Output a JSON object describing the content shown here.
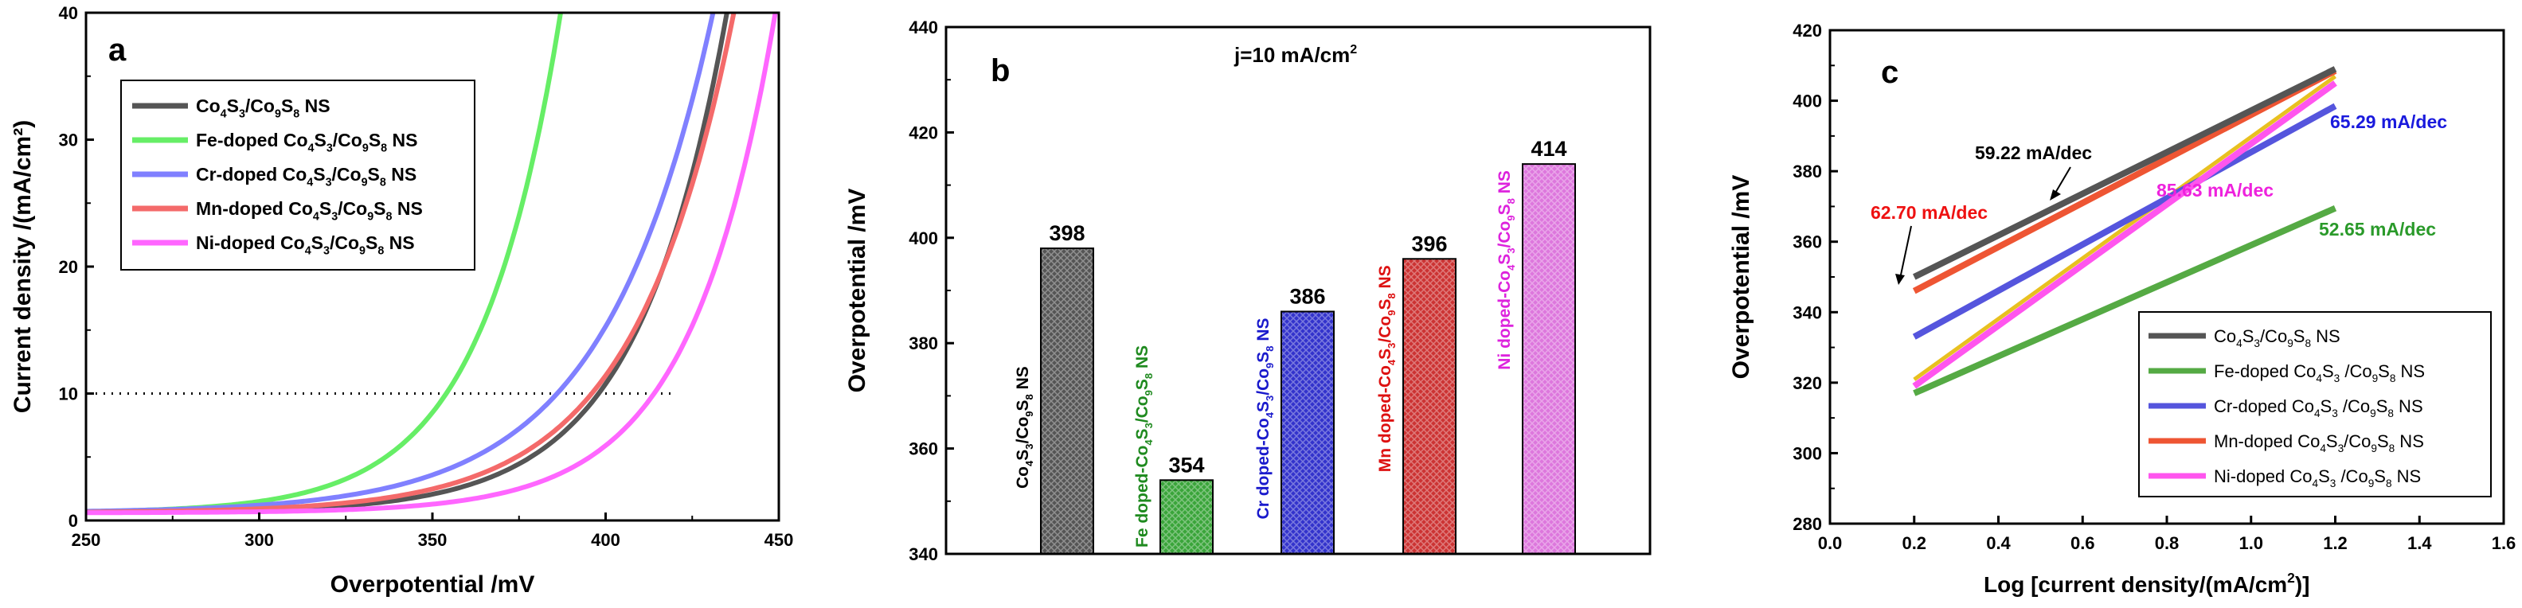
{
  "chart_data": [
    {
      "type": "line",
      "panel_label": "a",
      "xlabel": "Overpotential /mV",
      "ylabel": "Current density /(mA/cm²)",
      "xlim": [
        250,
        450
      ],
      "ylim": [
        0,
        40
      ],
      "xticks": [
        "250",
        "300",
        "350",
        "400",
        "450"
      ],
      "yticks": [
        "0",
        "10",
        "20",
        "30",
        "40"
      ],
      "reference_line": {
        "y": 10,
        "x_range": [
          250,
          420
        ],
        "style": "dotted"
      },
      "legend_position": "top-left",
      "series": [
        {
          "name": "Co4S3/Co9S8 NS",
          "legend": [
            "Co",
            "4",
            "S",
            "3",
            "/Co",
            "9",
            "S",
            "8",
            " NS"
          ],
          "color": "#555555",
          "eta10": 398,
          "end_x": 435
        },
        {
          "name": "Fe-doped Co4S3/Co9S8 NS",
          "legend": [
            "Fe-doped Co",
            "4",
            "S",
            "3",
            "/Co",
            "9",
            "S",
            "8",
            " NS"
          ],
          "color": "#66ee66",
          "eta10": 354,
          "end_x": 387
        },
        {
          "name": "Cr-doped Co4S3/Co9S8 NS",
          "legend": [
            "Cr-doped Co",
            "4",
            "S",
            "3",
            "/Co",
            "9",
            "S",
            "8",
            " NS"
          ],
          "color": "#8080ff",
          "eta10": 386,
          "end_x": 431
        },
        {
          "name": "Mn-doped Co4S3/Co9S8 NS",
          "legend": [
            "Mn-doped Co",
            "4",
            "S",
            "3",
            "/Co",
            "9",
            "S",
            "8",
            " NS"
          ],
          "color": "#f46a6a",
          "eta10": 396,
          "end_x": 437
        },
        {
          "name": "Ni-doped Co4S3/Co9S8 NS",
          "legend": [
            "Ni-doped Co",
            "4",
            "S",
            "3",
            "/Co",
            "9",
            "S",
            "8",
            " NS"
          ],
          "color": "#ff66ff",
          "eta10": 414,
          "end_x": 449
        }
      ]
    },
    {
      "type": "bar",
      "panel_label": "b",
      "title": "j=10 mA/cm²",
      "title_parts": [
        "j=10 mA/cm",
        "2"
      ],
      "xlabel": "",
      "ylabel": "Overpotential /mV",
      "ylim": [
        340,
        440
      ],
      "yticks": [
        "340",
        "360",
        "380",
        "400",
        "420",
        "440"
      ],
      "categories": [
        "Co4S3/Co9S8 NS",
        "Fe doped-Co4S3/Co9S8 NS",
        "Cr doped-Co4S3/Co9S8 NS",
        "Mn doped-Co4S3/Co9S8 NS",
        "Ni doped-Co4S3/Co9S8 NS"
      ],
      "values": [
        398,
        354,
        386,
        396,
        414
      ],
      "value_labels": [
        "398",
        "354",
        "386",
        "396",
        "414"
      ],
      "bar_colors": [
        "#555555",
        "#3aa53a",
        "#3333cc",
        "#cc3333",
        "#dd77dd"
      ],
      "label_colors": [
        "#000000",
        "#1f8a1f",
        "#1a1acc",
        "#dd1111",
        "#dd22dd"
      ],
      "category_labels": [
        [
          "Co",
          "4",
          "S",
          "3",
          "/Co",
          "9",
          "S",
          "8",
          " NS"
        ],
        [
          "Fe doped-Co",
          "4",
          "S",
          "3",
          "/Co",
          "9",
          "S",
          "8",
          " NS"
        ],
        [
          "Cr doped-Co",
          "4",
          "S",
          "3",
          "/Co",
          "9",
          "S",
          "8",
          " NS"
        ],
        [
          "Mn doped-Co",
          "4",
          "S",
          "3",
          "/Co",
          "9",
          "S",
          "8",
          " NS"
        ],
        [
          "Ni doped-Co",
          "4",
          "S",
          "3",
          "/Co",
          "9",
          "S",
          "8",
          " NS"
        ]
      ]
    },
    {
      "type": "line",
      "panel_label": "c",
      "xlabel": "Log [current density/(mA/cm²)]",
      "ylabel": "Overpotential /mV",
      "xlim": [
        0.0,
        1.6
      ],
      "ylim": [
        280,
        420
      ],
      "xticks": [
        "0.0",
        "0.2",
        "0.4",
        "0.6",
        "0.8",
        "1.0",
        "1.2",
        "1.4",
        "1.6"
      ],
      "yticks": [
        "280",
        "300",
        "320",
        "340",
        "360",
        "380",
        "400",
        "420"
      ],
      "legend_position": "bottom-right",
      "series": [
        {
          "name": "Co4S3/Co9S8 NS",
          "legend": [
            "Co",
            "4",
            "S",
            "3",
            "/Co",
            "9",
            "S",
            "8",
            " NS"
          ],
          "color": "#555555",
          "x": [
            0.2,
            1.2
          ],
          "y": [
            350,
            409
          ],
          "slope_label": "59.22 mA/dec",
          "label_color": "#000000"
        },
        {
          "name": "Fe-doped Co4S3/Co9S8 NS",
          "legend": [
            "Fe-doped Co",
            "4",
            "S",
            "3",
            " /Co",
            "9",
            "S",
            "8",
            " NS"
          ],
          "color": "#55aa44",
          "x": [
            0.2,
            1.2
          ],
          "y": [
            317,
            369.5
          ],
          "slope_label": "52.65 mA/dec",
          "label_color": "#2a9a2a"
        },
        {
          "name": "Cr-doped Co4S3/Co9S8 NS",
          "legend": [
            "Cr-doped Co",
            "4",
            "S",
            "3",
            " /Co",
            "9",
            "S",
            "8",
            " NS"
          ],
          "color": "#5555dd",
          "x": [
            0.2,
            1.2
          ],
          "y": [
            333,
            398.5
          ],
          "slope_label": "65.29 mA/dec",
          "label_color": "#1a1add"
        },
        {
          "name": "Mn-doped Co4S3/Co9S8 NS",
          "legend": [
            "Mn-doped Co",
            "4",
            "S",
            "3",
            "/Co",
            "9",
            "S",
            "8",
            " NS"
          ],
          "color": "#ee5533",
          "x": [
            0.2,
            1.2
          ],
          "y": [
            346,
            408.5
          ],
          "slope_label": "62.70 mA/dec",
          "label_color": "#ee1111"
        },
        {
          "name": "Ni-doped Co4S3/Co9S8 NS",
          "legend": [
            "Ni-doped Co",
            "4",
            "S",
            "3",
            " /Co",
            "9",
            "S",
            "8",
            " NS"
          ],
          "color": "#ff55ee",
          "x": [
            0.2,
            1.2
          ],
          "y": [
            319,
            405
          ],
          "slope_label": "85.63 mA/dec",
          "label_color": "#ee22dd"
        }
      ],
      "extra_lines": [
        {
          "color": "#e8c020",
          "x": [
            0.2,
            1.2
          ],
          "y": [
            320,
            406
          ]
        }
      ]
    }
  ]
}
